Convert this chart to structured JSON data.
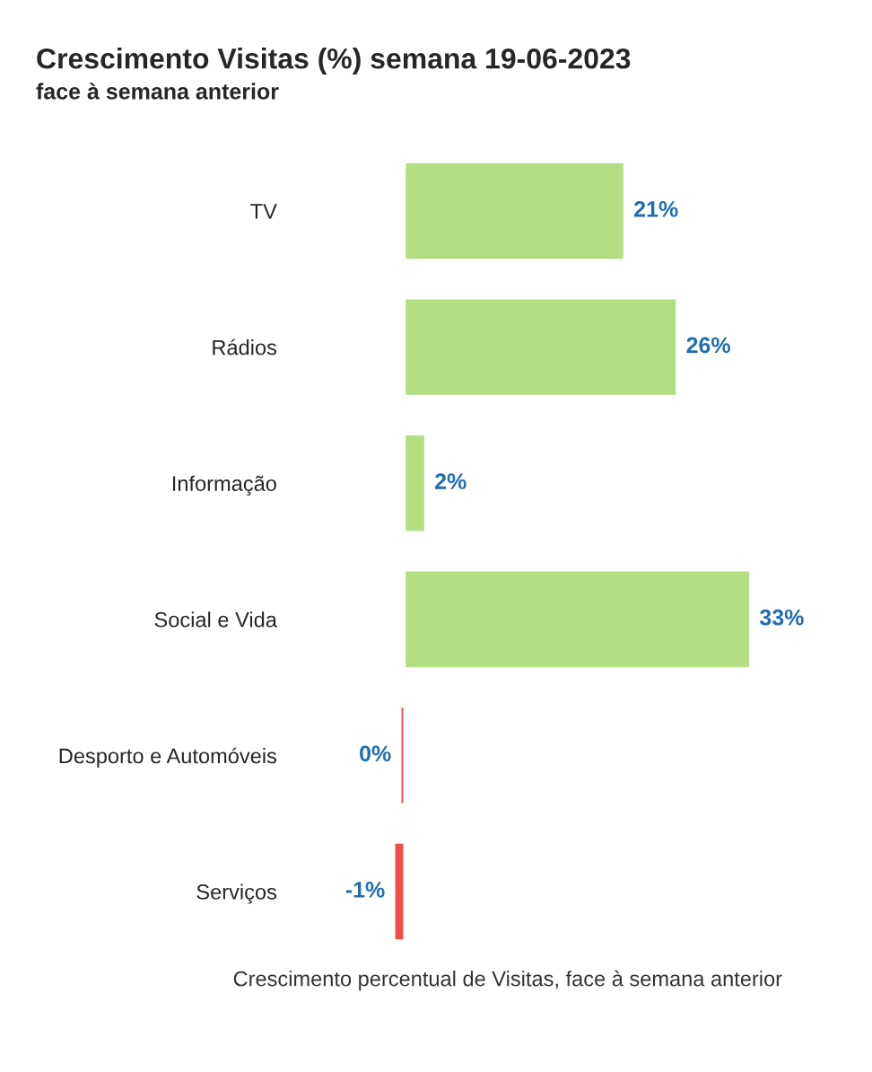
{
  "chart_data": {
    "type": "bar",
    "orientation": "horizontal",
    "title": "Crescimento Visitas (%) semana 19-06-2023",
    "subtitle": "face à semana anterior",
    "categories": [
      "TV",
      "Rádios",
      "Informação",
      "Social e Vida",
      "Desporto e Automóveis",
      "Serviços"
    ],
    "values": [
      21,
      26,
      2,
      33,
      -0.4,
      -1
    ],
    "colors": [
      "#b3df82",
      "#b3df82",
      "#b3df82",
      "#b3df82",
      "#ee4b4b",
      "#ee4b4b"
    ],
    "value_labels": [
      "21%",
      "26%",
      "2%",
      "33%",
      "0%",
      "-1%"
    ],
    "annotations": [
      "Crescimento percentual de Visitas, face à semana anterior"
    ],
    "grid": false,
    "legend": false,
    "tick_labels": "y"
  }
}
